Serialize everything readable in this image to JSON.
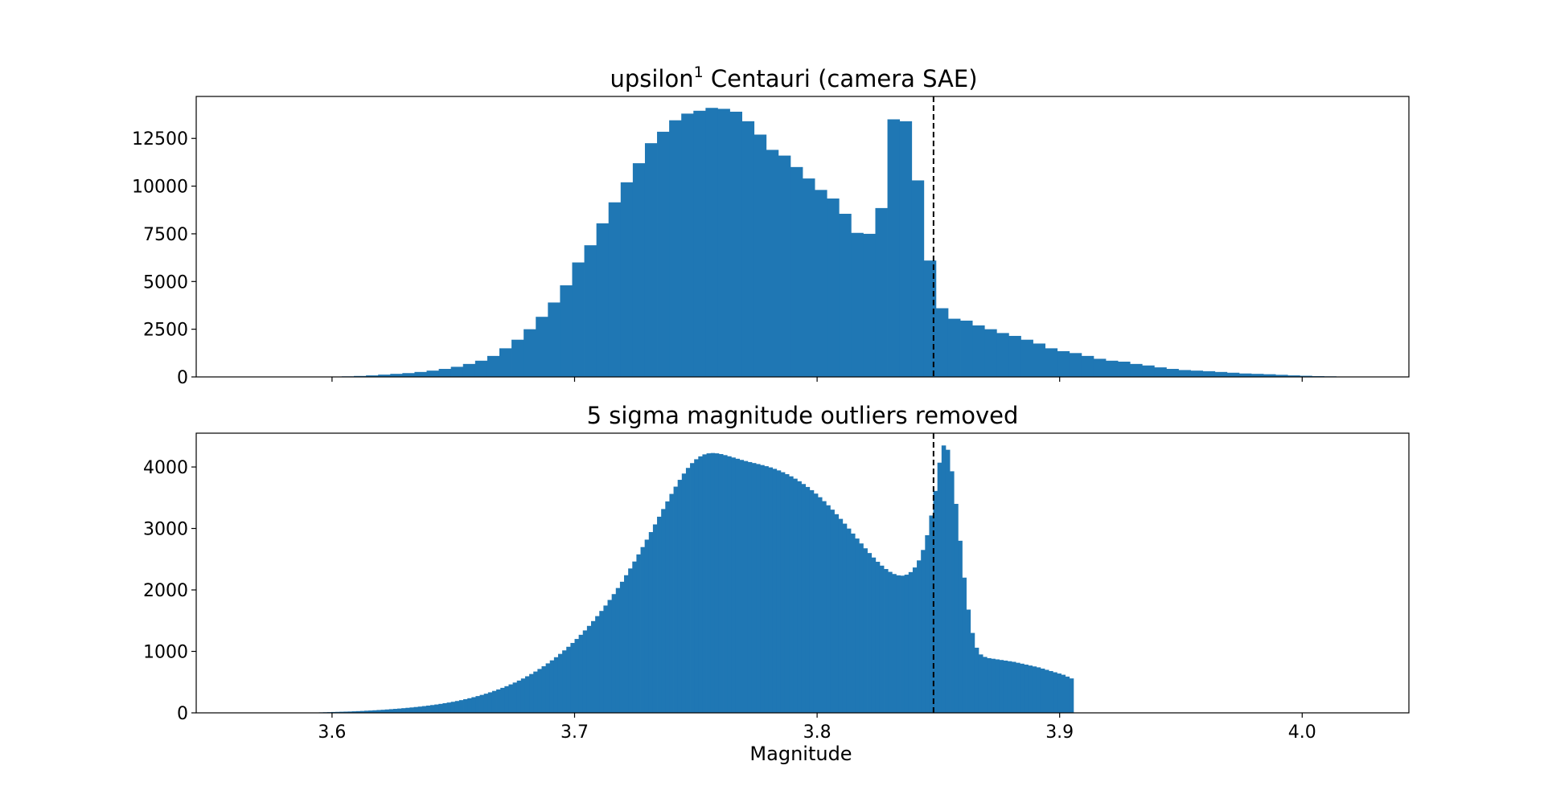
{
  "chart_data": [
    {
      "type": "bar",
      "title_main": "upsilon",
      "title_sup": "1",
      "title_rest": " Centauri (camera SAE)",
      "xlabel": "",
      "ylabel": "",
      "xlim": [
        3.544,
        4.044
      ],
      "ylim": [
        0,
        14700
      ],
      "y_ticks": [
        0,
        2500,
        5000,
        7500,
        10000,
        12500
      ],
      "y_tick_labels": [
        "0",
        "2500",
        "5000",
        "7500",
        "10000",
        "12500"
      ],
      "x_ticks": [
        3.6,
        3.7,
        3.8,
        3.9,
        4.0
      ],
      "x_tick_labels_shown": false,
      "reference_line_x": 3.848,
      "bins": {
        "start": 3.564,
        "width": 0.005,
        "counts": [
          0,
          0,
          0,
          0,
          0,
          5,
          10,
          15,
          30,
          50,
          80,
          120,
          160,
          200,
          260,
          330,
          420,
          530,
          680,
          850,
          1100,
          1500,
          1950,
          2500,
          3150,
          3900,
          4800,
          6000,
          6900,
          8050,
          9150,
          10200,
          11200,
          12250,
          12850,
          13450,
          13800,
          13950,
          14100,
          14050,
          13900,
          13400,
          12700,
          11900,
          11600,
          11000,
          10400,
          9800,
          9350,
          8550,
          7550,
          7500,
          8850,
          13500,
          13400,
          10300,
          6100,
          3600,
          3050,
          2950,
          2700,
          2500,
          2300,
          2150,
          1950,
          1750,
          1500,
          1350,
          1250,
          1100,
          950,
          850,
          800,
          680,
          600,
          500,
          420,
          360,
          330,
          300,
          260,
          220,
          180,
          160,
          140,
          110,
          80,
          60,
          40,
          30,
          20,
          10
        ]
      }
    },
    {
      "type": "bar",
      "title": "5 sigma magnitude outliers removed",
      "xlabel": "Magnitude",
      "ylabel": "",
      "xlim": [
        3.544,
        4.044
      ],
      "ylim": [
        0,
        4550
      ],
      "y_ticks": [
        0,
        1000,
        2000,
        3000,
        4000
      ],
      "y_tick_labels": [
        "0",
        "1000",
        "2000",
        "3000",
        "4000"
      ],
      "x_ticks": [
        3.6,
        3.7,
        3.8,
        3.9,
        4.0
      ],
      "x_tick_labels": [
        "3.6",
        "3.7",
        "3.8",
        "3.9",
        "4.0"
      ],
      "reference_line_x": 3.848,
      "bins": {
        "start": 3.564,
        "width": 0.0017,
        "counts": [
          0,
          0,
          0,
          0,
          0,
          0,
          0,
          0,
          0,
          0,
          0,
          0,
          0,
          0,
          0,
          0,
          5,
          6,
          8,
          10,
          12,
          14,
          16,
          18,
          20,
          22,
          25,
          28,
          31,
          35,
          38,
          42,
          46,
          50,
          55,
          60,
          65,
          70,
          76,
          82,
          88,
          95,
          102,
          110,
          118,
          127,
          136,
          146,
          157,
          168,
          180,
          193,
          207,
          222,
          238,
          255,
          273,
          292,
          312,
          334,
          357,
          381,
          407,
          434,
          463,
          493,
          525,
          559,
          595,
          632,
          672,
          714,
          758,
          805,
          854,
          905,
          959,
          1016,
          1075,
          1137,
          1202,
          1270,
          1341,
          1415,
          1493,
          1574,
          1658,
          1746,
          1837,
          1932,
          2031,
          2133,
          2239,
          2349,
          2462,
          2578,
          2697,
          2818,
          2941,
          3066,
          3191,
          3316,
          3440,
          3562,
          3680,
          3791,
          3893,
          3985,
          4063,
          4126,
          4173,
          4205,
          4222,
          4227,
          4222,
          4210,
          4193,
          4174,
          4154,
          4134,
          4115,
          4097,
          4080,
          4064,
          4048,
          4031,
          4013,
          3993,
          3970,
          3944,
          3915,
          3883,
          3848,
          3810,
          3768,
          3723,
          3675,
          3623,
          3567,
          3508,
          3444,
          3377,
          3306,
          3232,
          3156,
          3078,
          2998,
          2917,
          2836,
          2756,
          2677,
          2600,
          2527,
          2458,
          2395,
          2340,
          2294,
          2259,
          2237,
          2232,
          2248,
          2290,
          2365,
          2480,
          2650,
          2890,
          3210,
          3610,
          4070,
          4350,
          4280,
          3930,
          3400,
          2800,
          2200,
          1680,
          1300,
          1060,
          950,
          910,
          890,
          880,
          870,
          860,
          850,
          840,
          830,
          815,
          800,
          785,
          770,
          755,
          740,
          720,
          700,
          680,
          660,
          640,
          620,
          590,
          560,
          0
        ]
      }
    }
  ]
}
